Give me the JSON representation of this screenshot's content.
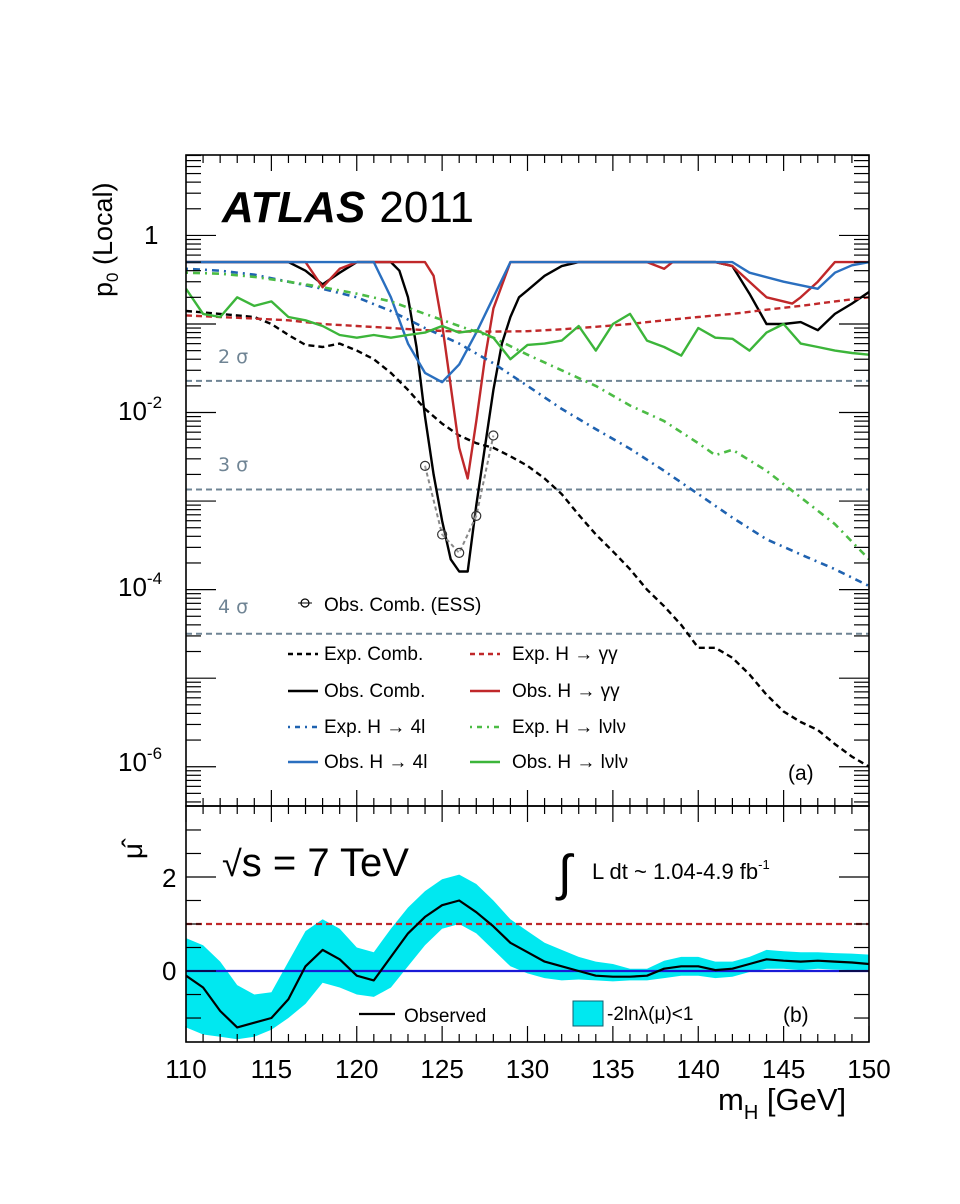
{
  "chart_data": [
    {
      "panel": "a",
      "type": "line",
      "title": "ATLAS 2011",
      "title_bold": "ATLAS",
      "title_rest": "2011",
      "xlabel": "m_H [GeV]",
      "ylabel": "p0 (Local)",
      "ylabel_main": "p",
      "ylabel_sub": "0",
      "ylabel_rest": " (Local)",
      "yscale": "log",
      "xlim": [
        110,
        150
      ],
      "ylim": [
        3.6e-07,
        8.1
      ],
      "yticks": [
        {
          "value": 1,
          "label": "1"
        },
        {
          "value": 0.01,
          "base": "10",
          "exp": "-2"
        },
        {
          "value": 0.0001,
          "base": "10",
          "exp": "-4"
        },
        {
          "value": 1e-06,
          "base": "10",
          "exp": "-6"
        }
      ],
      "panel_tag": "(a)",
      "sigma_lines": [
        {
          "label": "2 σ",
          "p": 0.0228
        },
        {
          "label": "3 σ",
          "p": 0.00135
        },
        {
          "label": "4 σ",
          "p": 3.17e-05
        }
      ],
      "series": [
        {
          "name": "Exp. Comb.",
          "key": "exp_comb",
          "color": "#000000",
          "style": "dashed",
          "x": [
            110,
            112,
            114,
            115,
            116,
            117,
            118,
            119,
            120,
            121,
            122,
            123,
            124,
            125,
            126,
            127,
            128,
            129,
            130,
            131,
            132,
            133,
            134,
            135,
            136,
            137,
            138,
            139,
            140,
            141,
            142,
            143,
            144,
            145,
            146,
            147,
            148,
            149,
            150
          ],
          "y": [
            0.14,
            0.13,
            0.12,
            0.1,
            0.075,
            0.058,
            0.055,
            0.06,
            0.05,
            0.04,
            0.028,
            0.018,
            0.011,
            0.0075,
            0.0055,
            0.0045,
            0.004,
            0.0032,
            0.0025,
            0.0018,
            0.0012,
            0.0007,
            0.00042,
            0.00027,
            0.00017,
            0.0001,
            6.5e-05,
            4e-05,
            2.2e-05,
            2.2e-05,
            1.7e-05,
            1.1e-05,
            6.5e-06,
            4.2e-06,
            3.2e-06,
            2.6e-06,
            1.8e-06,
            1.3e-06,
            1e-06
          ]
        },
        {
          "name": "Obs. Comb.",
          "key": "obs_comb",
          "color": "#000000",
          "style": "solid",
          "x": [
            110,
            116,
            117,
            118,
            119,
            120,
            122,
            122.5,
            123,
            123.5,
            124,
            124.5,
            125,
            125.5,
            126,
            126.5,
            127,
            127.5,
            128,
            128.5,
            129,
            129.5,
            130,
            131,
            132,
            133,
            141,
            142,
            143,
            144,
            145,
            146,
            147,
            148,
            149,
            150
          ],
          "y": [
            0.5,
            0.5,
            0.4,
            0.28,
            0.38,
            0.5,
            0.5,
            0.4,
            0.2,
            0.055,
            0.009,
            0.002,
            0.0006,
            0.00022,
            0.00016,
            0.00016,
            0.0009,
            0.004,
            0.018,
            0.06,
            0.12,
            0.2,
            0.24,
            0.35,
            0.45,
            0.5,
            0.5,
            0.45,
            0.22,
            0.1,
            0.1,
            0.105,
            0.085,
            0.13,
            0.17,
            0.23
          ]
        },
        {
          "name": "Obs. Comb. (ESS)",
          "key": "obs_ess",
          "color": "#777777",
          "style": "dotted-markers",
          "x": [
            124,
            125,
            126,
            127,
            128
          ],
          "y": [
            0.0025,
            0.00042,
            0.00026,
            0.00068,
            0.0055
          ]
        },
        {
          "name": "Exp. H → γγ",
          "key": "exp_gg",
          "color": "#c0282a",
          "style": "dashed",
          "x": [
            110,
            112,
            114,
            116,
            118,
            120,
            122,
            124,
            126,
            128,
            130,
            132,
            134,
            136,
            138,
            140,
            142,
            144,
            146,
            148,
            150
          ],
          "y": [
            0.125,
            0.12,
            0.115,
            0.11,
            0.1,
            0.095,
            0.09,
            0.085,
            0.082,
            0.082,
            0.083,
            0.087,
            0.093,
            0.1,
            0.11,
            0.12,
            0.13,
            0.145,
            0.16,
            0.18,
            0.2
          ]
        },
        {
          "name": "Obs. H → γγ",
          "key": "obs_gg",
          "color": "#c0282a",
          "style": "solid",
          "x": [
            110,
            117,
            118,
            119,
            120,
            124,
            124.5,
            125,
            125.5,
            126,
            126.5,
            127,
            127.5,
            128,
            129,
            137,
            138,
            138.5,
            141,
            142,
            143,
            144,
            145,
            145.5,
            146,
            147,
            148,
            150
          ],
          "y": [
            0.5,
            0.5,
            0.26,
            0.42,
            0.5,
            0.5,
            0.35,
            0.1,
            0.02,
            0.004,
            0.0018,
            0.008,
            0.04,
            0.15,
            0.5,
            0.5,
            0.42,
            0.5,
            0.5,
            0.45,
            0.3,
            0.2,
            0.18,
            0.17,
            0.2,
            0.3,
            0.5,
            0.5
          ]
        },
        {
          "name": "Exp. H → 4l",
          "key": "exp_4l",
          "color": "#1f62b0",
          "style": "dashdot",
          "x": [
            110,
            112,
            114,
            116,
            118,
            120,
            122,
            124,
            126,
            128,
            130,
            132,
            134,
            136,
            138,
            140,
            142,
            144,
            146,
            148,
            150
          ],
          "y": [
            0.42,
            0.4,
            0.36,
            0.3,
            0.25,
            0.2,
            0.14,
            0.09,
            0.06,
            0.036,
            0.02,
            0.011,
            0.0065,
            0.0039,
            0.0022,
            0.0012,
            0.00065,
            0.00037,
            0.00025,
            0.00017,
            0.00011
          ]
        },
        {
          "name": "Obs. H → 4l",
          "key": "obs_4l",
          "color": "#2a6fbf",
          "style": "solid",
          "x": [
            110,
            121,
            122,
            123,
            124,
            125,
            126,
            127,
            128,
            129,
            142,
            143,
            145,
            147,
            148,
            149,
            150
          ],
          "y": [
            0.5,
            0.5,
            0.2,
            0.06,
            0.028,
            0.022,
            0.035,
            0.08,
            0.2,
            0.5,
            0.5,
            0.38,
            0.3,
            0.25,
            0.38,
            0.46,
            0.5
          ]
        },
        {
          "name": "Exp. H → lνlν",
          "key": "exp_lvlv",
          "color": "#4cbc45",
          "style": "dashdot",
          "x": [
            110,
            112,
            114,
            116,
            118,
            120,
            122,
            124,
            126,
            128,
            130,
            132,
            134,
            136,
            138,
            140,
            141,
            142,
            144,
            146,
            148,
            150
          ],
          "y": [
            0.38,
            0.37,
            0.34,
            0.3,
            0.26,
            0.22,
            0.18,
            0.13,
            0.095,
            0.07,
            0.045,
            0.03,
            0.02,
            0.012,
            0.008,
            0.0045,
            0.0033,
            0.0038,
            0.0022,
            0.0011,
            0.00055,
            0.00022
          ]
        },
        {
          "name": "Obs. H → lνlν",
          "key": "obs_lvlv",
          "color": "#3cb53a",
          "style": "solid",
          "x": [
            110,
            111,
            112,
            113,
            114,
            115,
            116,
            117,
            118,
            119,
            120,
            121,
            122,
            123,
            124,
            125,
            126,
            127,
            128,
            129,
            130,
            131,
            132,
            133,
            134,
            135,
            136,
            137,
            138,
            139,
            140,
            141,
            142,
            143,
            144,
            145,
            146,
            147,
            148,
            149,
            150
          ],
          "y": [
            0.25,
            0.13,
            0.12,
            0.2,
            0.16,
            0.18,
            0.12,
            0.11,
            0.095,
            0.075,
            0.07,
            0.075,
            0.07,
            0.075,
            0.08,
            0.095,
            0.08,
            0.085,
            0.07,
            0.04,
            0.058,
            0.06,
            0.065,
            0.095,
            0.05,
            0.1,
            0.13,
            0.065,
            0.055,
            0.044,
            0.09,
            0.07,
            0.068,
            0.05,
            0.08,
            0.1,
            0.06,
            0.055,
            0.05,
            0.047,
            0.045
          ]
        }
      ],
      "legend": {
        "ess_label": "Obs. Comb. (ESS)",
        "items": [
          {
            "key": "exp_comb",
            "label": "Exp. Comb."
          },
          {
            "key": "exp_gg",
            "label": "Exp. H → γγ"
          },
          {
            "key": "obs_comb",
            "label": "Obs. Comb."
          },
          {
            "key": "obs_gg",
            "label": "Obs. H → γγ"
          },
          {
            "key": "exp_4l",
            "label": "Exp. H → 4l"
          },
          {
            "key": "exp_lvlv",
            "label": "Exp. H → lνlν"
          },
          {
            "key": "obs_4l",
            "label": "Obs. H → 4l"
          },
          {
            "key": "obs_lvlv",
            "label": "Obs. H → lνlν"
          }
        ],
        "placement": "bottom-center"
      }
    },
    {
      "panel": "b",
      "type": "line",
      "xlabel": "m_H [GeV]",
      "xlabel_main": "m",
      "xlabel_sub": "H",
      "xlabel_rest": " [GeV]",
      "ylabel": "μ̂",
      "xlim": [
        110,
        150
      ],
      "ylim": [
        -1.51,
        3.51
      ],
      "xticks": [
        110,
        115,
        120,
        125,
        130,
        135,
        140,
        145,
        150
      ],
      "yticks": [
        0,
        2
      ],
      "panel_tag": "(b)",
      "energy_label": "s = 7 TeV",
      "energy_sqrt": "√",
      "energy_rest": "s = 7 TeV",
      "lumi_label": "∫ L dt ~ 1.04-4.9 fb-1",
      "lumi_int": "∫",
      "lumi_text": "L dt ~ 1.04-4.9 fb",
      "lumi_exp": "-1",
      "reference_lines": [
        {
          "name": "mu=1",
          "value": 1,
          "color": "#c0282a",
          "style": "dashed"
        },
        {
          "name": "mu=0",
          "value": 0,
          "color": "#1a1ad6",
          "style": "solid"
        }
      ],
      "observed": {
        "name": "Observed",
        "color": "#000000",
        "x": [
          110,
          111,
          112,
          113,
          114,
          115,
          116,
          117,
          118,
          119,
          120,
          121,
          122,
          123,
          124,
          125,
          126,
          127,
          128,
          129,
          130,
          131,
          132,
          133,
          134,
          135,
          136,
          137,
          138,
          139,
          140,
          141,
          142,
          143,
          144,
          145,
          146,
          147,
          148,
          149,
          150
        ],
        "y": [
          -0.1,
          -0.35,
          -0.85,
          -1.2,
          -1.1,
          -1.0,
          -0.6,
          0.1,
          0.45,
          0.25,
          -0.1,
          -0.2,
          0.3,
          0.8,
          1.15,
          1.4,
          1.5,
          1.25,
          0.95,
          0.6,
          0.4,
          0.2,
          0.1,
          0.0,
          -0.1,
          -0.12,
          -0.12,
          -0.1,
          0.05,
          0.1,
          0.1,
          0.02,
          0.05,
          0.15,
          0.25,
          0.22,
          0.2,
          0.22,
          0.2,
          0.18,
          0.15
        ]
      },
      "band": {
        "name": "-2lnλ(μ)<1",
        "color": "#00e8f0",
        "upper": [
          0.7,
          0.55,
          0.2,
          -0.3,
          -0.5,
          -0.45,
          0.2,
          0.85,
          1.1,
          0.9,
          0.5,
          0.4,
          0.9,
          1.35,
          1.7,
          1.95,
          2.05,
          1.85,
          1.5,
          1.1,
          0.85,
          0.6,
          0.45,
          0.3,
          0.2,
          0.15,
          0.05,
          0.05,
          0.22,
          0.3,
          0.3,
          0.2,
          0.2,
          0.3,
          0.45,
          0.42,
          0.4,
          0.4,
          0.38,
          0.37,
          0.35
        ],
        "lower": [
          -1.2,
          -1.35,
          -1.4,
          -1.45,
          -1.4,
          -1.25,
          -1.0,
          -0.7,
          -0.25,
          -0.35,
          -0.5,
          -0.55,
          -0.35,
          0.1,
          0.55,
          0.9,
          1.0,
          0.8,
          0.45,
          0.1,
          -0.05,
          -0.15,
          -0.2,
          -0.18,
          -0.2,
          -0.22,
          -0.2,
          -0.2,
          -0.15,
          -0.1,
          -0.1,
          -0.15,
          -0.12,
          -0.02,
          0.05,
          0.05,
          0.02,
          0.05,
          0.03,
          0.02,
          0.0
        ]
      },
      "legend": [
        {
          "label": "Observed"
        },
        {
          "label": "-2lnλ(μ)<1"
        }
      ]
    }
  ]
}
